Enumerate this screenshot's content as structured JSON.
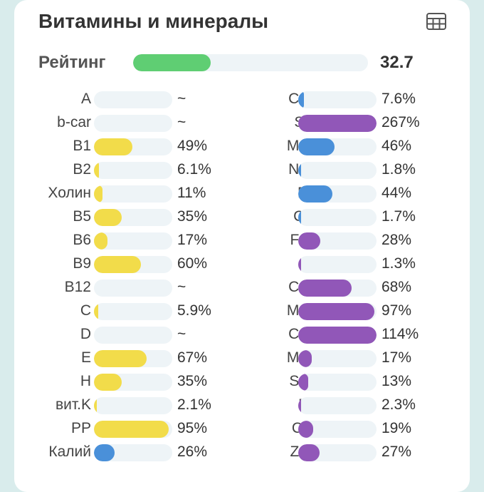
{
  "header": {
    "title": "Витамины и минералы",
    "table_icon": "table-grid-icon"
  },
  "rating": {
    "label": "Рейтинг",
    "value": "32.7",
    "fill_fraction": 0.33,
    "color": "#5fce73"
  },
  "colors": {
    "vitamin": "#f2dc4a",
    "mineral_blue": "#4a90d9",
    "mineral_purple": "#9157b8",
    "track": "#eef4f7"
  },
  "vitamins": [
    {
      "name": "A",
      "value": "~",
      "fill": 0,
      "color": "#f2dc4a"
    },
    {
      "name": "b-car",
      "value": "~",
      "fill": 0,
      "color": "#f2dc4a"
    },
    {
      "name": "B1",
      "value": "49%",
      "fill": 0.49,
      "color": "#f2dc4a"
    },
    {
      "name": "B2",
      "value": "6.1%",
      "fill": 0.061,
      "color": "#f2dc4a"
    },
    {
      "name": "Холин",
      "value": "11%",
      "fill": 0.11,
      "color": "#f2dc4a"
    },
    {
      "name": "B5",
      "value": "35%",
      "fill": 0.35,
      "color": "#f2dc4a"
    },
    {
      "name": "B6",
      "value": "17%",
      "fill": 0.17,
      "color": "#f2dc4a"
    },
    {
      "name": "B9",
      "value": "60%",
      "fill": 0.6,
      "color": "#f2dc4a"
    },
    {
      "name": "B12",
      "value": "~",
      "fill": 0,
      "color": "#f2dc4a"
    },
    {
      "name": "C",
      "value": "5.9%",
      "fill": 0.059,
      "color": "#f2dc4a"
    },
    {
      "name": "D",
      "value": "~",
      "fill": 0,
      "color": "#f2dc4a"
    },
    {
      "name": "E",
      "value": "67%",
      "fill": 0.67,
      "color": "#f2dc4a"
    },
    {
      "name": "H",
      "value": "35%",
      "fill": 0.35,
      "color": "#f2dc4a"
    },
    {
      "name": "вит.K",
      "value": "2.1%",
      "fill": 0.021,
      "color": "#f2dc4a"
    },
    {
      "name": "PP",
      "value": "95%",
      "fill": 0.95,
      "color": "#f2dc4a"
    },
    {
      "name": "Калий",
      "value": "26%",
      "fill": 0.26,
      "color": "#4a90d9"
    }
  ],
  "minerals": [
    {
      "name": "Ca",
      "value": "7.6%",
      "fill": 0.076,
      "color": "#4a90d9"
    },
    {
      "name": "Si",
      "value": "267%",
      "fill": 1.0,
      "color": "#9157b8"
    },
    {
      "name": "Mg",
      "value": "46%",
      "fill": 0.46,
      "color": "#4a90d9"
    },
    {
      "name": "Na",
      "value": "1.8%",
      "fill": 0.018,
      "color": "#4a90d9"
    },
    {
      "name": "P",
      "value": "44%",
      "fill": 0.44,
      "color": "#4a90d9"
    },
    {
      "name": "Cl",
      "value": "1.7%",
      "fill": 0.017,
      "color": "#4a90d9"
    },
    {
      "name": "Fe",
      "value": "28%",
      "fill": 0.28,
      "color": "#9157b8"
    },
    {
      "name": "I",
      "value": "1.3%",
      "fill": 0.013,
      "color": "#9157b8"
    },
    {
      "name": "Co",
      "value": "68%",
      "fill": 0.68,
      "color": "#9157b8"
    },
    {
      "name": "Mn",
      "value": "97%",
      "fill": 0.97,
      "color": "#9157b8"
    },
    {
      "name": "Cu",
      "value": "114%",
      "fill": 1.0,
      "color": "#9157b8"
    },
    {
      "name": "Mo",
      "value": "17%",
      "fill": 0.17,
      "color": "#9157b8"
    },
    {
      "name": "Se",
      "value": "13%",
      "fill": 0.13,
      "color": "#9157b8"
    },
    {
      "name": "F",
      "value": "2.3%",
      "fill": 0.023,
      "color": "#9157b8"
    },
    {
      "name": "Cr",
      "value": "19%",
      "fill": 0.19,
      "color": "#9157b8"
    },
    {
      "name": "Zn",
      "value": "27%",
      "fill": 0.27,
      "color": "#9157b8"
    }
  ]
}
